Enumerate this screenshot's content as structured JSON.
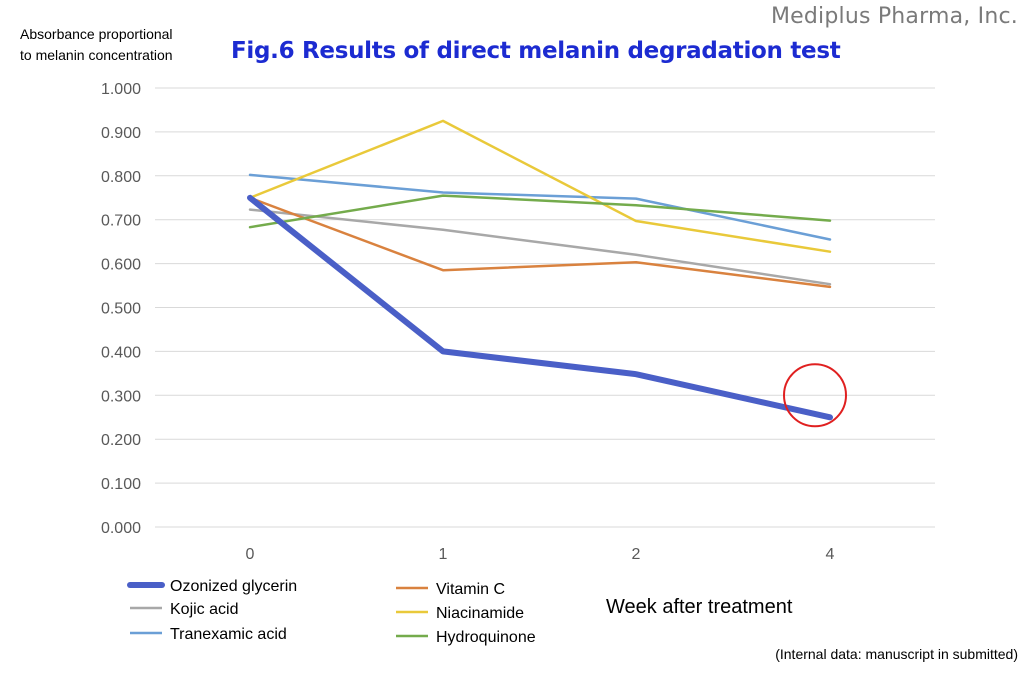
{
  "header": {
    "company": "Mediplus Pharma, Inc.",
    "figure_title": "Fig.6 Results of direct melanin degradation test",
    "ylabel_line1": "Absorbance proportional",
    "ylabel_line2": "to melanin concentration"
  },
  "footer": {
    "xlabel": "Week after treatment",
    "note": "(Internal data: manuscript in submitted)"
  },
  "chart_data": {
    "type": "line",
    "title": "Fig.6 Results of direct melanin degradation test",
    "xlabel": "Week after treatment",
    "ylabel": "Absorbance proportional to melanin concentration",
    "categories": [
      "0",
      "1",
      "2",
      "4"
    ],
    "ylim": [
      0,
      1
    ],
    "yticks": [
      "0.000",
      "0.100",
      "0.200",
      "0.300",
      "0.400",
      "0.500",
      "0.600",
      "0.700",
      "0.800",
      "0.900",
      "1.000"
    ],
    "grid": true,
    "legend": "bottom",
    "series": [
      {
        "name": "Ozonized glycerin",
        "values": [
          0.75,
          0.4,
          0.348,
          0.25
        ],
        "color": "#4a5fc7",
        "width": 6
      },
      {
        "name": "Kojic acid",
        "values": [
          0.723,
          0.677,
          0.62,
          0.553
        ],
        "color": "#a8a8a8",
        "width": 2.5
      },
      {
        "name": "Tranexamic acid",
        "values": [
          0.802,
          0.762,
          0.748,
          0.655
        ],
        "color": "#6b9fd6",
        "width": 2.5
      },
      {
        "name": "Vitamin C",
        "values": [
          0.75,
          0.585,
          0.603,
          0.547
        ],
        "color": "#d9823f",
        "width": 2.5
      },
      {
        "name": "Niacinamide",
        "values": [
          0.75,
          0.925,
          0.697,
          0.627
        ],
        "color": "#e9c93a",
        "width": 2.5
      },
      {
        "name": "Hydroquinone",
        "values": [
          0.683,
          0.755,
          0.733,
          0.698
        ],
        "color": "#74ab4c",
        "width": 2.5
      }
    ],
    "annotation": {
      "type": "circle",
      "category": "4",
      "series": "Ozonized glycerin",
      "color": "#e02020"
    }
  }
}
